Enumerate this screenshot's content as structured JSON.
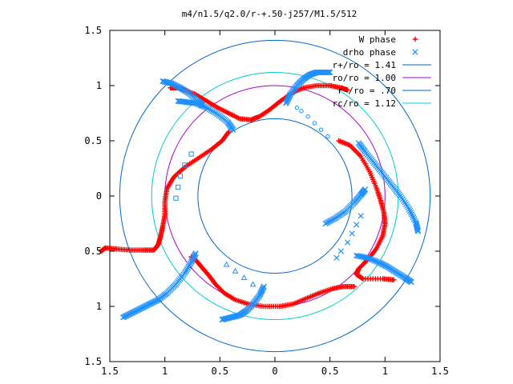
{
  "chart_data": {
    "type": "scatter",
    "title": "m4/n1.5/q2.0/r-+.50-j257/M1.5/512",
    "xlim": [
      -1.5,
      1.5
    ],
    "ylim": [
      -1.5,
      1.5
    ],
    "x_tick_labels": [
      "1.5",
      "1",
      "0.5",
      "0",
      "0.5",
      "1",
      "1.5"
    ],
    "y_tick_labels": [
      "1.5",
      "1",
      "0.5",
      "0",
      "0.5",
      "1",
      "1.5"
    ],
    "grid": false,
    "legend_position": "top-right",
    "colors": {
      "w_phase": "#ff0000",
      "drho_phase": "#1e90ff",
      "r_plus": "#0066cc",
      "ro": "#aa00cc",
      "r_minus": "#0066cc",
      "rc": "#00cccc"
    },
    "circles": [
      {
        "name": "r+/ro = 1.41",
        "radius": 1.41,
        "color_key": "r_plus"
      },
      {
        "name": "ro/ro = 1.00",
        "radius": 1.0,
        "color_key": "ro"
      },
      {
        "name": "r-/ro = .70",
        "radius": 0.7,
        "color_key": "r_minus"
      },
      {
        "name": "rc/ro = 1.12",
        "radius": 1.12,
        "color_key": "rc"
      }
    ],
    "series": [
      {
        "name": "W phase",
        "marker": "+",
        "color_key": "w_phase",
        "arms": [
          [
            [
              0.58,
              0.5
            ],
            [
              0.68,
              0.46
            ],
            [
              0.78,
              0.36
            ],
            [
              0.86,
              0.22
            ],
            [
              0.92,
              0.08
            ],
            [
              0.96,
              -0.04
            ],
            [
              0.99,
              -0.15
            ],
            [
              1.0,
              -0.25
            ],
            [
              0.98,
              -0.36
            ],
            [
              0.92,
              -0.48
            ],
            [
              0.84,
              -0.58
            ],
            [
              0.76,
              -0.66
            ],
            [
              0.74,
              -0.71
            ],
            [
              0.8,
              -0.75
            ],
            [
              0.98,
              -0.75
            ],
            [
              1.08,
              -0.76
            ]
          ],
          [
            [
              0.66,
              0.96
            ],
            [
              0.6,
              0.98
            ],
            [
              0.5,
              1.0
            ],
            [
              0.38,
              1.0
            ],
            [
              0.26,
              0.98
            ],
            [
              0.15,
              0.93
            ],
            [
              0.05,
              0.86
            ],
            [
              -0.05,
              0.78
            ],
            [
              -0.14,
              0.72
            ],
            [
              -0.22,
              0.69
            ],
            [
              -0.32,
              0.7
            ],
            [
              -0.42,
              0.75
            ],
            [
              -0.52,
              0.8
            ],
            [
              -0.62,
              0.86
            ],
            [
              -0.72,
              0.92
            ],
            [
              -0.82,
              0.96
            ],
            [
              -0.88,
              0.98
            ],
            [
              -0.95,
              0.98
            ]
          ],
          [
            [
              -0.42,
              0.58
            ],
            [
              -0.48,
              0.5
            ],
            [
              -0.58,
              0.42
            ],
            [
              -0.7,
              0.34
            ],
            [
              -0.82,
              0.26
            ],
            [
              -0.92,
              0.17
            ],
            [
              -0.98,
              0.07
            ],
            [
              -1.0,
              -0.05
            ],
            [
              -1.0,
              -0.17
            ],
            [
              -1.02,
              -0.28
            ],
            [
              -1.04,
              -0.37
            ],
            [
              -1.06,
              -0.44
            ],
            [
              -1.1,
              -0.49
            ],
            [
              -1.2,
              -0.49
            ],
            [
              -1.32,
              -0.49
            ],
            [
              -1.44,
              -0.48
            ],
            [
              -1.54,
              -0.47
            ],
            [
              -1.58,
              -0.5
            ]
          ],
          [
            [
              -0.76,
              -0.55
            ],
            [
              -0.72,
              -0.58
            ],
            [
              -0.66,
              -0.65
            ],
            [
              -0.6,
              -0.72
            ],
            [
              -0.54,
              -0.8
            ],
            [
              -0.46,
              -0.88
            ],
            [
              -0.36,
              -0.94
            ],
            [
              -0.24,
              -0.98
            ],
            [
              -0.1,
              -1.0
            ],
            [
              0.04,
              -1.0
            ],
            [
              0.16,
              -0.98
            ],
            [
              0.28,
              -0.93
            ],
            [
              0.4,
              -0.88
            ],
            [
              0.52,
              -0.84
            ],
            [
              0.62,
              -0.82
            ],
            [
              0.72,
              -0.82
            ]
          ]
        ]
      },
      {
        "name": "drho phase",
        "marker": "x",
        "color_key": "drho_phase",
        "arms": [
          [
            [
              0.1,
              0.84
            ],
            [
              0.14,
              0.92
            ],
            [
              0.2,
              1.0
            ],
            [
              0.26,
              1.06
            ],
            [
              0.32,
              1.1
            ],
            [
              0.38,
              1.12
            ],
            [
              0.44,
              1.12
            ],
            [
              0.5,
              1.12
            ]
          ],
          [
            [
              0.76,
              0.48
            ],
            [
              0.82,
              0.4
            ],
            [
              0.9,
              0.3
            ],
            [
              0.98,
              0.2
            ],
            [
              1.06,
              0.1
            ],
            [
              1.14,
              0.0
            ],
            [
              1.22,
              -0.12
            ],
            [
              1.28,
              -0.24
            ],
            [
              1.3,
              -0.32
            ]
          ],
          [
            [
              0.46,
              -0.25
            ],
            [
              0.55,
              -0.2
            ],
            [
              0.64,
              -0.14
            ],
            [
              0.72,
              -0.06
            ],
            [
              0.78,
              0.01
            ],
            [
              0.82,
              0.06
            ]
          ],
          [
            [
              -0.38,
              0.6
            ],
            [
              -0.43,
              0.67
            ],
            [
              -0.52,
              0.74
            ],
            [
              -0.62,
              0.8
            ],
            [
              -0.72,
              0.84
            ],
            [
              -0.8,
              0.85
            ],
            [
              -0.88,
              0.86
            ]
          ],
          [
            [
              -0.66,
              0.82
            ],
            [
              -0.7,
              0.86
            ],
            [
              -0.78,
              0.93
            ],
            [
              -0.86,
              0.98
            ],
            [
              -0.94,
              1.02
            ],
            [
              -1.02,
              1.04
            ]
          ],
          [
            [
              -0.72,
              -0.52
            ],
            [
              -0.76,
              -0.6
            ],
            [
              -0.82,
              -0.7
            ],
            [
              -0.9,
              -0.8
            ],
            [
              -0.98,
              -0.88
            ],
            [
              -1.06,
              -0.94
            ],
            [
              -1.14,
              -0.98
            ],
            [
              -1.22,
              -1.02
            ],
            [
              -1.3,
              -1.06
            ],
            [
              -1.38,
              -1.1
            ]
          ],
          [
            [
              -0.1,
              -0.82
            ],
            [
              -0.14,
              -0.9
            ],
            [
              -0.2,
              -0.98
            ],
            [
              -0.26,
              -1.04
            ],
            [
              -0.32,
              -1.08
            ],
            [
              -0.4,
              -1.1
            ],
            [
              -0.48,
              -1.12
            ]
          ],
          [
            [
              0.74,
              -0.54
            ],
            [
              0.84,
              -0.56
            ],
            [
              0.94,
              -0.6
            ],
            [
              1.02,
              -0.64
            ],
            [
              1.1,
              -0.69
            ],
            [
              1.18,
              -0.74
            ],
            [
              1.24,
              -0.78
            ]
          ]
        ],
        "extras": [
          {
            "shape": "circle",
            "points": [
              [
                0.2,
                0.8
              ],
              [
                0.24,
                0.77
              ],
              [
                0.3,
                0.72
              ],
              [
                0.36,
                0.66
              ],
              [
                0.42,
                0.6
              ],
              [
                0.48,
                0.54
              ]
            ]
          },
          {
            "shape": "square",
            "points": [
              [
                -0.76,
                0.38
              ],
              [
                -0.82,
                0.28
              ],
              [
                -0.86,
                0.18
              ],
              [
                -0.88,
                0.08
              ],
              [
                -0.9,
                -0.02
              ]
            ]
          },
          {
            "shape": "triangle",
            "points": [
              [
                -0.44,
                -0.62
              ],
              [
                -0.36,
                -0.68
              ],
              [
                -0.28,
                -0.74
              ],
              [
                -0.2,
                -0.8
              ],
              [
                -0.12,
                -0.86
              ]
            ]
          },
          {
            "shape": "x",
            "points": [
              [
                0.56,
                -0.56
              ],
              [
                0.6,
                -0.5
              ],
              [
                0.66,
                -0.42
              ],
              [
                0.7,
                -0.34
              ],
              [
                0.74,
                -0.26
              ],
              [
                0.78,
                -0.18
              ]
            ]
          }
        ]
      }
    ]
  }
}
